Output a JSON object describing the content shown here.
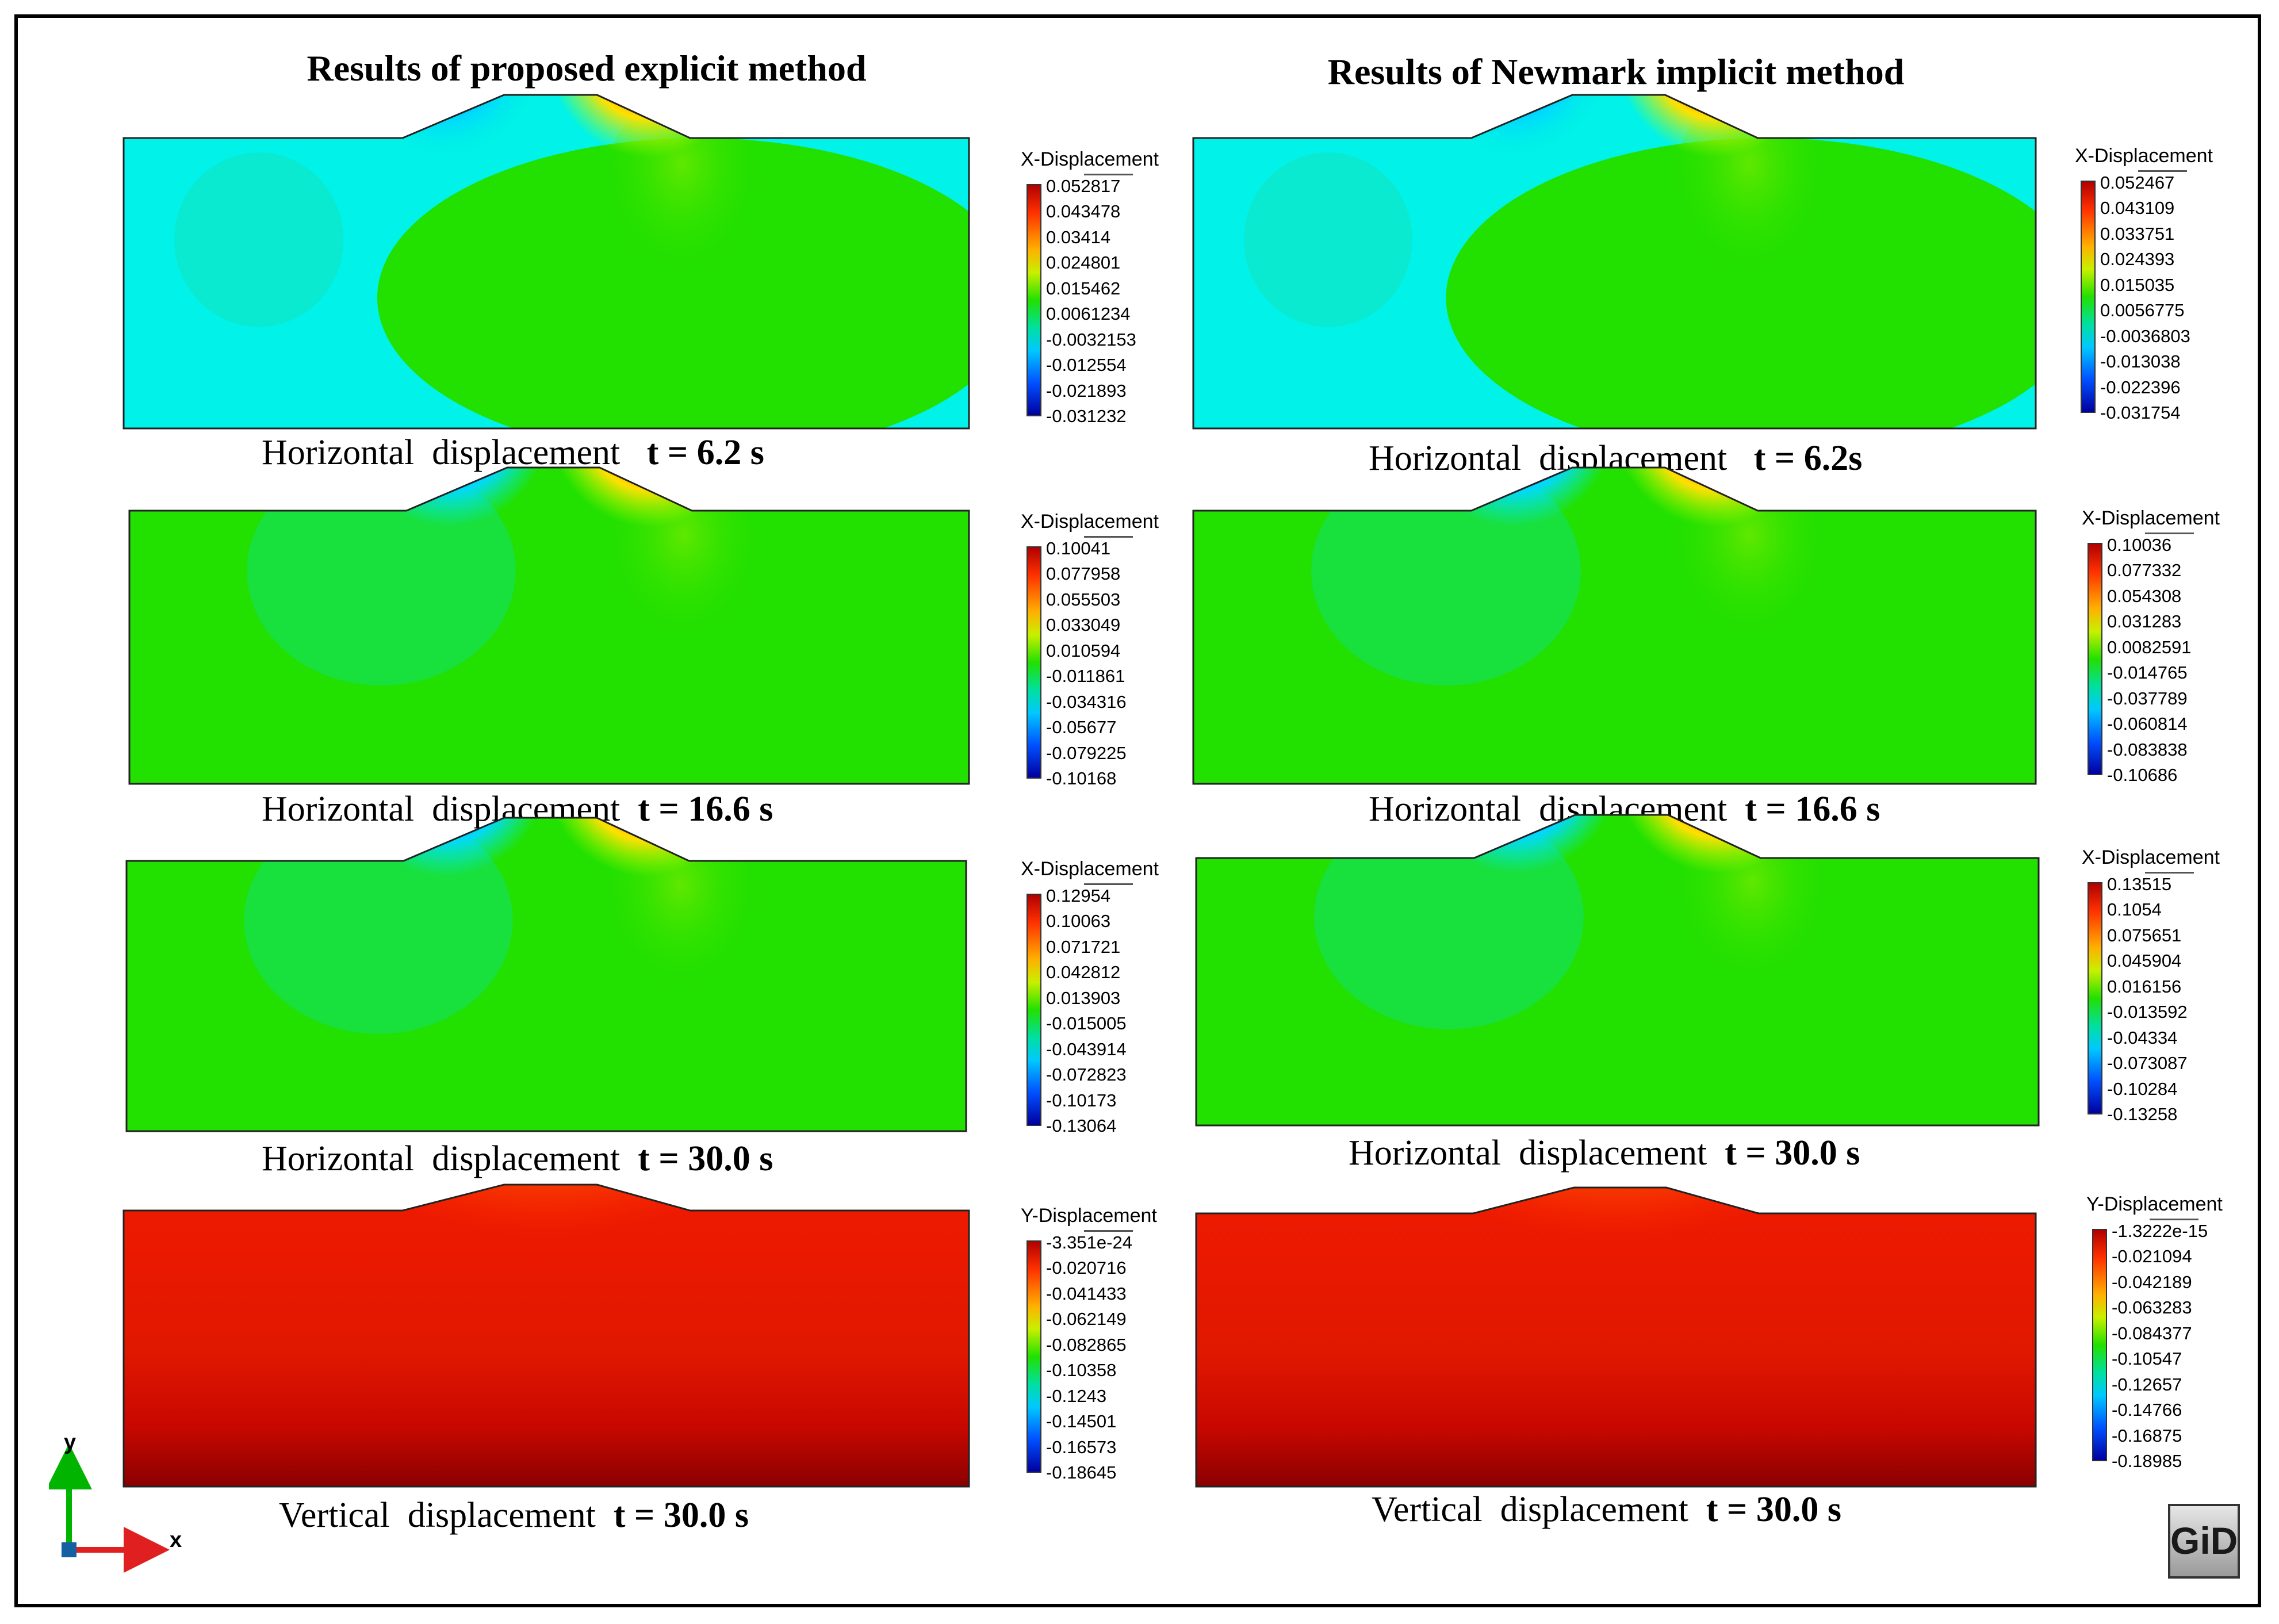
{
  "columns": {
    "left_title": "Results of proposed  explicit method",
    "right_title": "Results of Newmark implicit method"
  },
  "panels": [
    {
      "method": "explicit",
      "field": "horizontal",
      "legend_title": "X-Displacement",
      "ticks": [
        "0.052817",
        "0.043478",
        "0.03414",
        "0.024801",
        "0.015462",
        "0.0061234",
        "-0.0032153",
        "-0.012554",
        "-0.021893",
        "-0.031232"
      ],
      "caption_text": "Horizontal  displacement   ",
      "caption_time": "t = 6.2 s"
    },
    {
      "method": "implicit",
      "field": "horizontal",
      "legend_title": "X-Displacement",
      "ticks": [
        "0.052467",
        "0.043109",
        "0.033751",
        "0.024393",
        "0.015035",
        "0.0056775",
        "-0.0036803",
        "-0.013038",
        "-0.022396",
        "-0.031754"
      ],
      "caption_text": "Horizontal  displacement   ",
      "caption_time": "t = 6.2s"
    },
    {
      "method": "explicit",
      "field": "horizontal",
      "legend_title": "X-Displacement",
      "ticks": [
        "0.10041",
        "0.077958",
        "0.055503",
        "0.033049",
        "0.010594",
        "-0.011861",
        "-0.034316",
        "-0.05677",
        "-0.079225",
        "-0.10168"
      ],
      "caption_text": "Horizontal  displacement  ",
      "caption_time": "t = 16.6 s"
    },
    {
      "method": "implicit",
      "field": "horizontal",
      "legend_title": "X-Displacement",
      "ticks": [
        "0.10036",
        "0.077332",
        "0.054308",
        "0.031283",
        "0.0082591",
        "-0.014765",
        "-0.037789",
        "-0.060814",
        "-0.083838",
        "-0.10686"
      ],
      "caption_text": "Horizontal  displacement  ",
      "caption_time": "t = 16.6 s"
    },
    {
      "method": "explicit",
      "field": "horizontal",
      "legend_title": "X-Displacement",
      "ticks": [
        "0.12954",
        "0.10063",
        "0.071721",
        "0.042812",
        "0.013903",
        "-0.015005",
        "-0.043914",
        "-0.072823",
        "-0.10173",
        "-0.13064"
      ],
      "caption_text": "Horizontal  displacement  ",
      "caption_time": "t = 30.0 s"
    },
    {
      "method": "implicit",
      "field": "horizontal",
      "legend_title": "X-Displacement",
      "ticks": [
        "0.13515",
        "0.1054",
        "0.075651",
        "0.045904",
        "0.016156",
        "-0.013592",
        "-0.04334",
        "-0.073087",
        "-0.10284",
        "-0.13258"
      ],
      "caption_text": "Horizontal  displacement  ",
      "caption_time": "t = 30.0 s"
    },
    {
      "method": "explicit",
      "field": "vertical",
      "legend_title": "Y-Displacement",
      "ticks": [
        "-3.351e-24",
        "-0.020716",
        "-0.041433",
        "-0.062149",
        "-0.082865",
        "-0.10358",
        "-0.1243",
        "-0.14501",
        "-0.16573",
        "-0.18645"
      ],
      "caption_text": "Vertical  displacement  ",
      "caption_time": "t = 30.0 s"
    },
    {
      "method": "implicit",
      "field": "vertical",
      "legend_title": "Y-Displacement",
      "ticks": [
        "-1.3222e-15",
        "-0.021094",
        "-0.042189",
        "-0.063283",
        "-0.084377",
        "-0.10547",
        "-0.12657",
        "-0.14766",
        "-0.16875",
        "-0.18985"
      ],
      "caption_text": "Vertical  displacement  ",
      "caption_time": "t = 30.0 s"
    }
  ],
  "axes": {
    "y_label": "y",
    "x_label": "x"
  },
  "logo": {
    "text": "GiD"
  },
  "colors": {
    "red": "#e00000",
    "blue": "#0000c8",
    "green": "#22e000",
    "cyan": "#00f0e8",
    "dark_red": "#8a0000",
    "axis_green": "#00b400",
    "axis_red": "#e02020"
  }
}
